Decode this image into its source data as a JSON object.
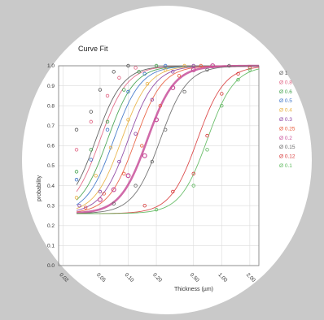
{
  "chart_data": {
    "type": "scatter",
    "title": "Curve Fit",
    "xlabel": "Thickness (µm)",
    "ylabel": "probability",
    "x_scale": "log",
    "xlim": [
      0.018,
      2.5
    ],
    "ylim": [
      0.0,
      1.0
    ],
    "x_ticks": [
      0.02,
      0.05,
      0.1,
      0.2,
      0.5,
      1.0,
      2.0
    ],
    "x_tick_labels": [
      "0.02",
      "0.05",
      "0.10",
      "0.20",
      "0.50",
      "1.00",
      "2.00"
    ],
    "y_ticks": [
      0.0,
      0.1,
      0.2,
      0.3,
      0.4,
      0.5,
      0.6,
      0.7,
      0.8,
      0.9,
      1.0
    ],
    "y_tick_labels": [
      "0.0",
      "0.1",
      "0.2",
      "0.3",
      "0.4",
      "0.5",
      "0.6",
      "0.7",
      "0.8",
      "0.9",
      "1.0"
    ],
    "grid": true,
    "legend_position": "right",
    "series": [
      {
        "name": "Ø 1",
        "color": "#555555",
        "baseline": 0.26,
        "x50": 0.045,
        "slope": 3.0,
        "highlight": false,
        "points": [
          [
            0.028,
            0.68
          ],
          [
            0.04,
            0.77
          ],
          [
            0.05,
            0.88
          ],
          [
            0.07,
            0.97
          ],
          [
            0.1,
            1.0
          ]
        ]
      },
      {
        "name": "Ø 0.8",
        "color": "#e06080",
        "baseline": 0.26,
        "x50": 0.05,
        "slope": 3.0,
        "highlight": false,
        "points": [
          [
            0.028,
            0.58
          ],
          [
            0.04,
            0.72
          ],
          [
            0.06,
            0.85
          ],
          [
            0.08,
            0.94
          ],
          [
            0.12,
            0.99
          ]
        ]
      },
      {
        "name": "Ø 0.6",
        "color": "#3fa04a",
        "baseline": 0.26,
        "x50": 0.06,
        "slope": 3.0,
        "highlight": false,
        "points": [
          [
            0.028,
            0.47
          ],
          [
            0.04,
            0.58
          ],
          [
            0.06,
            0.72
          ],
          [
            0.09,
            0.88
          ],
          [
            0.13,
            0.97
          ],
          [
            0.2,
            1.0
          ]
        ]
      },
      {
        "name": "Ø 0.5",
        "color": "#3a72c8",
        "baseline": 0.26,
        "x50": 0.07,
        "slope": 3.0,
        "highlight": false,
        "points": [
          [
            0.028,
            0.43
          ],
          [
            0.04,
            0.53
          ],
          [
            0.06,
            0.68
          ],
          [
            0.1,
            0.87
          ],
          [
            0.15,
            0.96
          ],
          [
            0.25,
            1.0
          ]
        ]
      },
      {
        "name": "Ø 0.4",
        "color": "#e8b040",
        "baseline": 0.26,
        "x50": 0.085,
        "slope": 3.0,
        "highlight": false,
        "points": [
          [
            0.028,
            0.34
          ],
          [
            0.045,
            0.45
          ],
          [
            0.065,
            0.59
          ],
          [
            0.1,
            0.73
          ],
          [
            0.16,
            0.91
          ],
          [
            0.25,
            0.98
          ],
          [
            0.4,
            1.0
          ]
        ]
      },
      {
        "name": "Ø 0.3",
        "color": "#8a3fa0",
        "baseline": 0.26,
        "x50": 0.1,
        "slope": 3.0,
        "highlight": false,
        "points": [
          [
            0.03,
            0.3
          ],
          [
            0.05,
            0.37
          ],
          [
            0.08,
            0.52
          ],
          [
            0.12,
            0.66
          ],
          [
            0.18,
            0.83
          ],
          [
            0.3,
            0.97
          ],
          [
            0.5,
            1.0
          ]
        ]
      },
      {
        "name": "Ø 0.25",
        "color": "#e85a3a",
        "baseline": 0.26,
        "x50": 0.12,
        "slope": 3.0,
        "highlight": false,
        "points": [
          [
            0.035,
            0.29
          ],
          [
            0.055,
            0.36
          ],
          [
            0.09,
            0.46
          ],
          [
            0.14,
            0.6
          ],
          [
            0.22,
            0.8
          ],
          [
            0.35,
            0.95
          ],
          [
            0.6,
            1.0
          ]
        ]
      },
      {
        "name": "Ø 0.2",
        "color": "#c8509a",
        "baseline": 0.26,
        "x50": 0.16,
        "slope": 3.0,
        "highlight": true,
        "points": [
          [
            0.05,
            0.33
          ],
          [
            0.07,
            0.38
          ],
          [
            0.1,
            0.45
          ],
          [
            0.15,
            0.55
          ],
          [
            0.2,
            0.73
          ],
          [
            0.3,
            0.89
          ],
          [
            0.5,
            0.98
          ],
          [
            0.8,
            1.0
          ]
        ]
      },
      {
        "name": "Ø 0.15",
        "color": "#666666",
        "baseline": 0.26,
        "x50": 0.22,
        "slope": 3.0,
        "highlight": false,
        "points": [
          [
            0.07,
            0.31
          ],
          [
            0.12,
            0.4
          ],
          [
            0.18,
            0.52
          ],
          [
            0.25,
            0.68
          ],
          [
            0.4,
            0.87
          ],
          [
            0.7,
            0.98
          ],
          [
            1.2,
            1.0
          ]
        ]
      },
      {
        "name": "Ø 0.12",
        "color": "#d83a3a",
        "baseline": 0.26,
        "x50": 0.55,
        "slope": 3.0,
        "highlight": false,
        "points": [
          [
            0.15,
            0.3
          ],
          [
            0.3,
            0.37
          ],
          [
            0.5,
            0.46
          ],
          [
            0.7,
            0.65
          ],
          [
            1.0,
            0.86
          ],
          [
            1.5,
            0.96
          ],
          [
            2.0,
            0.99
          ]
        ]
      },
      {
        "name": "Ø 0.1",
        "color": "#5cb85c",
        "baseline": 0.26,
        "x50": 0.7,
        "slope": 3.0,
        "highlight": false,
        "points": [
          [
            0.2,
            0.28
          ],
          [
            0.5,
            0.4
          ],
          [
            0.7,
            0.58
          ],
          [
            1.0,
            0.8
          ],
          [
            1.5,
            0.93
          ],
          [
            2.0,
            0.98
          ]
        ]
      }
    ]
  }
}
